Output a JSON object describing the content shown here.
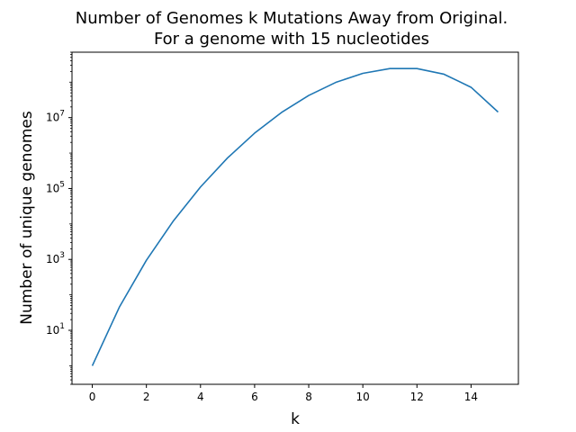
{
  "chart_data": {
    "type": "line",
    "title": "Number of Genomes k Mutations Away from Original.",
    "subtitle": "For a genome with 15 nucleotides",
    "xlabel": "k",
    "ylabel": "Number of unique genomes",
    "yscale": "log",
    "xlim": [
      -0.75,
      15.75
    ],
    "ylim": [
      0.3,
      700000000
    ],
    "grid": false,
    "x_ticks": [
      0,
      2,
      4,
      6,
      8,
      10,
      12,
      14
    ],
    "x_tick_labels": [
      "0",
      "2",
      "4",
      "6",
      "8",
      "10",
      "12",
      "14"
    ],
    "y_ticks": [
      10,
      1000,
      100000,
      10000000
    ],
    "y_tick_labels": [
      {
        "base": "10",
        "exp": "1"
      },
      {
        "base": "10",
        "exp": "3"
      },
      {
        "base": "10",
        "exp": "5"
      },
      {
        "base": "10",
        "exp": "7"
      }
    ],
    "line_color": "#1f77b4",
    "series": [
      {
        "x": [
          0,
          1,
          2,
          3,
          4,
          5,
          6,
          7,
          8,
          9,
          10,
          11,
          12,
          13,
          14,
          15
        ],
        "values": [
          1,
          45,
          945,
          12285,
          110565,
          729729,
          3648645,
          14073345,
          42220035,
          98513415,
          177324147,
          241805655,
          241805655,
          167403915,
          71744535,
          14348907
        ]
      }
    ]
  }
}
